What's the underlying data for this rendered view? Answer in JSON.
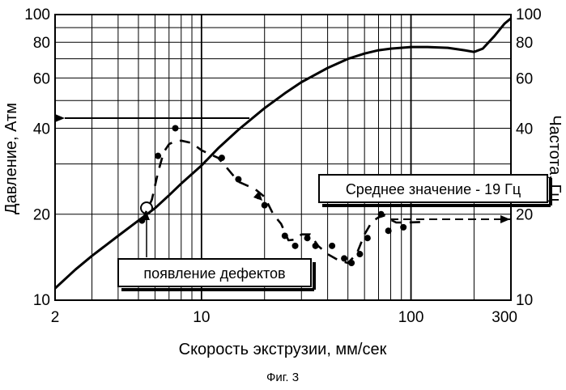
{
  "figure": {
    "caption": "Фиг. 3"
  },
  "chart_data": {
    "type": "line",
    "x_scale": "log",
    "y_scale": "log",
    "xlabel": "Скорость экструзии, мм/сек",
    "ylabel_left": "Давление, Атм",
    "ylabel_right": "Частота, Гц",
    "xlim": [
      2,
      300
    ],
    "ylim": [
      10,
      100
    ],
    "x_ticks": [
      2,
      10,
      100,
      300
    ],
    "x_tick_labels": [
      "2",
      "10",
      "100",
      "300"
    ],
    "y_ticks": [
      10,
      20,
      40,
      60,
      80,
      100
    ],
    "y_tick_labels": [
      "10",
      "20",
      "40",
      "60",
      "80",
      "100"
    ],
    "grid": true,
    "series": [
      {
        "axis": "left",
        "style": "solid",
        "x": [
          2,
          2.5,
          3,
          4,
          5,
          6,
          7,
          8,
          10,
          12,
          15,
          20,
          25,
          30,
          40,
          50,
          60,
          70,
          80,
          100,
          120,
          150,
          180,
          200,
          220,
          250,
          280,
          300
        ],
        "y": [
          11,
          12.8,
          14.3,
          16.8,
          19,
          21,
          23.3,
          25.6,
          29.6,
          34,
          39.5,
          47,
          53,
          58,
          65,
          70,
          73,
          75,
          76,
          77,
          77,
          76.5,
          75,
          74,
          76,
          84,
          93,
          97
        ]
      },
      {
        "axis": "right",
        "style": "dashed",
        "x": [
          5.2,
          5.8,
          6.2,
          6.6,
          7,
          7.5,
          8,
          9,
          10,
          12,
          13,
          15,
          18,
          20,
          22,
          24,
          26,
          28,
          30,
          33,
          36,
          40,
          45,
          50,
          55,
          60,
          65,
          70,
          75,
          78,
          85,
          95,
          120
        ],
        "y": [
          19,
          22.5,
          28,
          33,
          35.2,
          36,
          36.2,
          35.5,
          33.5,
          31.5,
          29.5,
          26,
          24.5,
          23,
          20,
          18.5,
          16.2,
          16.3,
          17,
          17,
          15.5,
          14.5,
          13.8,
          13.5,
          14.5,
          17,
          18.8,
          19.5,
          19.8,
          19.3,
          18.7,
          18.7,
          18.8
        ]
      },
      {
        "axis": "right",
        "style": "dots",
        "x": [
          5.2,
          6.2,
          7.5,
          12.5,
          15,
          20,
          25,
          28,
          32,
          35,
          42,
          48,
          52,
          57,
          62,
          72,
          78,
          92
        ],
        "y": [
          19,
          32,
          40,
          31.5,
          26.5,
          21.5,
          16.8,
          15.5,
          16.5,
          15.5,
          15.5,
          14,
          13.5,
          14.5,
          16.5,
          20,
          17.5,
          18
        ]
      }
    ],
    "annotations": [
      {
        "text": "Среднее значение - 19 Гц",
        "type": "boxed-label"
      },
      {
        "text": "появление дефектов",
        "type": "boxed-label"
      }
    ]
  }
}
